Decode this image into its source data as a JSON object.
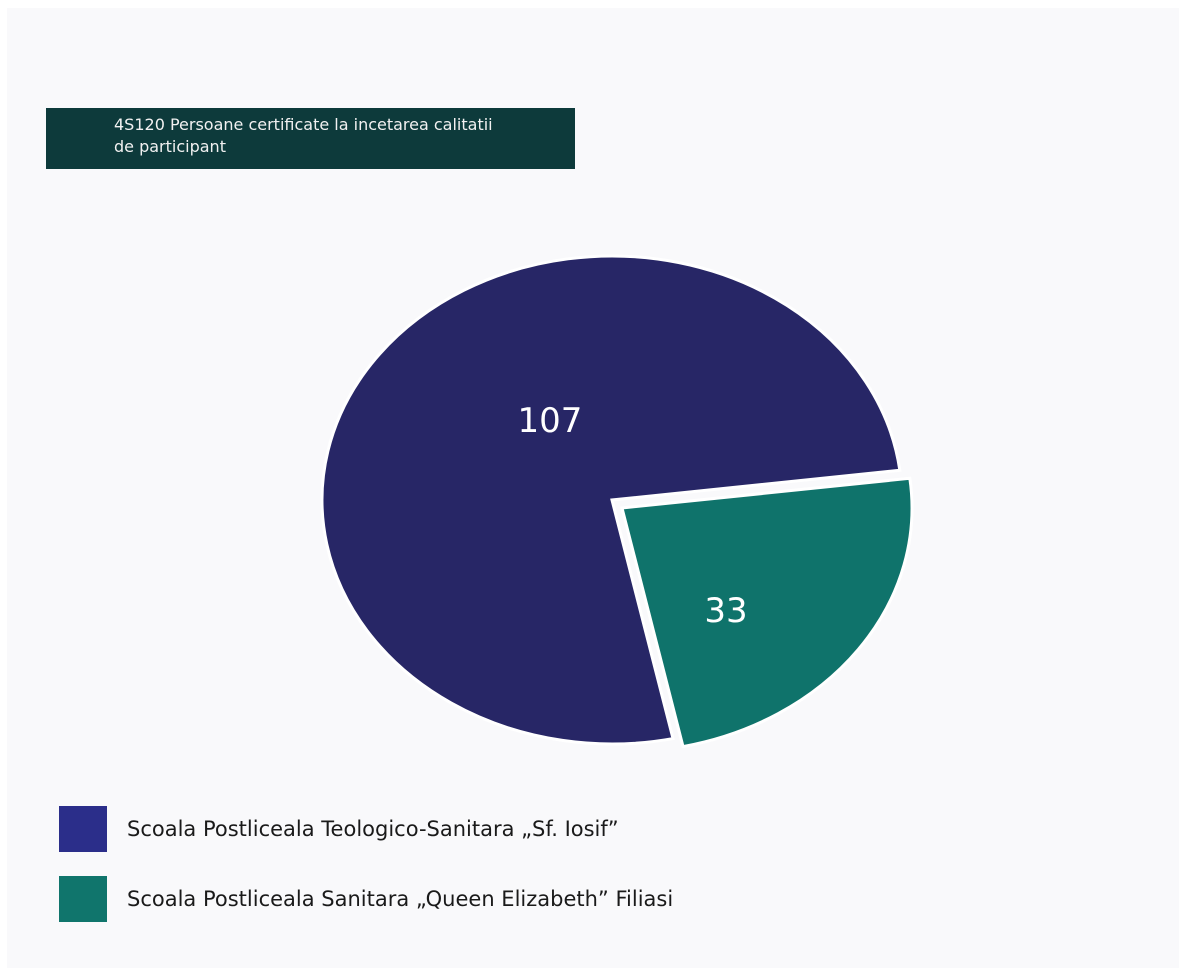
{
  "chart_data": {
    "type": "pie",
    "title": "4S120 Persoane certificate la incetarea calitatii de participant",
    "title_lines": [
      "4S120 Persoane certificate la incetarea calitatii",
      "de participant"
    ],
    "categories": [
      "Scoala Postliceala Teologico-Sanitara „Sf. Iosif”",
      "Scoala Postliceala Sanitara „Queen Elizabeth” Filiasi"
    ],
    "values": [
      107,
      33
    ],
    "value_labels": [
      "107",
      "33"
    ],
    "colors": [
      "#272666",
      "#0f736b"
    ],
    "legend_colors": [
      "#2b2e8a",
      "#10756c"
    ],
    "legend_position": "bottom-left",
    "explode_series": 1
  }
}
